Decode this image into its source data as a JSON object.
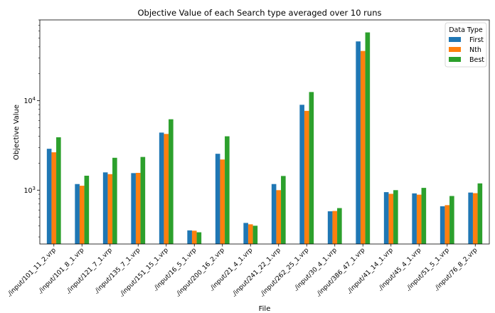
{
  "chart_data": {
    "type": "bar",
    "title": "Objective Value of each Search type averaged over 10 runs",
    "xlabel": "File",
    "ylabel": "Objective Value",
    "yscale": "log",
    "ylim": [
      250,
      80000
    ],
    "y_tick_labels": [
      {
        "value": 1000,
        "base": "10",
        "exp": "3"
      },
      {
        "value": 10000,
        "base": "10",
        "exp": "4"
      }
    ],
    "grid": false,
    "legend": {
      "title": "Data Type",
      "position": "top-right"
    },
    "categories": [
      "./input/101_11_2.vrp",
      "./input/101_8_1.vrp",
      "./input/121_7_1.vrp",
      "./input/135_7_1.vrp",
      "./input/151_15_1.vrp",
      "./input/16_5_1.vrp",
      "./input/200_16_2.vrp",
      "./input/21_4_1.vrp",
      "./input/241_22_1.vrp",
      "./input/262_25_1.vrp",
      "./input/30_4_1.vrp",
      "./input/386_47_1.vrp",
      "./input/41_14_1.vrp",
      "./input/45_4_1.vrp",
      "./input/51_5_1.vrp",
      "./input/76_8_2.vrp"
    ],
    "series": [
      {
        "name": "First",
        "color": "#1f77b4",
        "values": [
          2900,
          1170,
          1580,
          1550,
          4400,
          355,
          2550,
          430,
          1170,
          9000,
          580,
          46000,
          950,
          920,
          660,
          940
        ]
      },
      {
        "name": "Nth",
        "color": "#ff7f0e",
        "values": [
          2650,
          1120,
          1510,
          1560,
          4250,
          352,
          2200,
          415,
          1000,
          7700,
          585,
          36000,
          910,
          890,
          680,
          925
        ]
      },
      {
        "name": "Best",
        "color": "#2ca02c",
        "values": [
          3900,
          1450,
          2300,
          2350,
          6200,
          338,
          4000,
          400,
          1440,
          12500,
          630,
          58000,
          1000,
          1060,
          860,
          1190
        ]
      }
    ]
  }
}
